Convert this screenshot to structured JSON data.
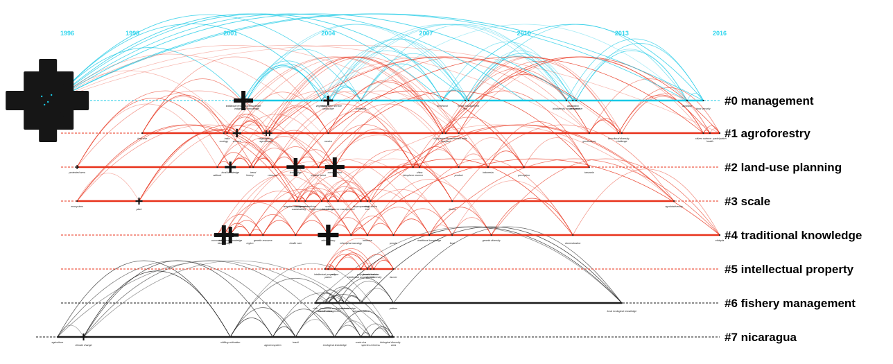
{
  "colors": {
    "top_cluster": "#19c9e6",
    "mid_clusters": "#e8311a",
    "low_clusters": "#1a1a1a",
    "years": "#2fd6ee"
  },
  "years": [
    "1996",
    "1998",
    "2001",
    "2004",
    "2007",
    "2010",
    "2013",
    "2016"
  ],
  "clusters": [
    {
      "label": "#0 management",
      "color": "cyan",
      "nodes": [
        {
          "label": "traditional ecological knowledge",
          "year": 2001.4
        },
        {
          "label": "indigenous knowledge",
          "year": 2001.5
        },
        {
          "label": "vegetation",
          "year": 2003.8
        },
        {
          "label": "landscape",
          "year": 2004.0
        },
        {
          "label": "ecosystem service",
          "year": 2004.1
        },
        {
          "label": "amazonia",
          "year": 2005.0
        },
        {
          "label": "livelihood",
          "year": 2007.5
        },
        {
          "label": "fire",
          "year": 2008.2
        },
        {
          "label": "forest management",
          "year": 2008.3
        },
        {
          "label": "biodiversity conservation",
          "year": 2011.3
        },
        {
          "label": "adaptation",
          "year": 2011.5
        },
        {
          "label": "perspective",
          "year": 2011.6
        },
        {
          "label": "australia",
          "year": 2015.0
        },
        {
          "label": "food security",
          "year": 2015.5
        }
      ]
    },
    {
      "label": "#1 agroforestry",
      "color": "red",
      "nodes": [
        {
          "label": "land use",
          "year": 1998.3
        },
        {
          "label": "ecology",
          "year": 2000.8
        },
        {
          "label": "india",
          "year": 2000.9
        },
        {
          "label": "science",
          "year": 2001.2
        },
        {
          "label": "organic",
          "year": 2002.0
        },
        {
          "label": "agroforestry",
          "year": 2002.1
        },
        {
          "label": "policy",
          "year": 2002.2
        },
        {
          "label": "mexico",
          "year": 2004.0
        },
        {
          "label": "silvopastoralism",
          "year": 2007.5
        },
        {
          "label": "vineyard",
          "year": 2007.6
        },
        {
          "label": "northeast india",
          "year": 2008.0
        },
        {
          "label": "governance",
          "year": 2012.0
        },
        {
          "label": "biocultural diversity",
          "year": 2012.9
        },
        {
          "label": "challenge",
          "year": 2013.0
        },
        {
          "label": "citizen science",
          "year": 2015.5
        },
        {
          "label": "health",
          "year": 2015.7
        },
        {
          "label": "participation",
          "year": 2016.0
        }
      ]
    },
    {
      "label": "#2 land-use planning",
      "color": "red",
      "nodes": [
        {
          "label": "protected area",
          "year": 1996.3
        },
        {
          "label": "attitude",
          "year": 2000.6
        },
        {
          "label": "local knowledge",
          "year": 2001.0
        },
        {
          "label": "history",
          "year": 2001.6
        },
        {
          "label": "trend",
          "year": 2001.7
        },
        {
          "label": "resource",
          "year": 2002.3
        },
        {
          "label": "knowledge",
          "year": 2003.0
        },
        {
          "label": "tropical forest",
          "year": 2003.7
        },
        {
          "label": "conservation",
          "year": 2004.2
        },
        {
          "label": "biosphere reserve",
          "year": 2006.6
        },
        {
          "label": "china",
          "year": 2006.8
        },
        {
          "label": "product",
          "year": 2008.0
        },
        {
          "label": "indonesia",
          "year": 2008.9
        },
        {
          "label": "perception",
          "year": 2010.0
        },
        {
          "label": "tanzania",
          "year": 2012.0
        }
      ]
    },
    {
      "label": "#3 scale",
      "color": "red",
      "nodes": [
        {
          "label": "ecosystem",
          "year": 1996.3
        },
        {
          "label": "plant",
          "year": 1998.2
        },
        {
          "label": "adaptive management",
          "year": 2003.0
        },
        {
          "label": "sustainability",
          "year": 2003.1
        },
        {
          "label": "traditional medicine",
          "year": 2003.3
        },
        {
          "label": "indigenous knowledge",
          "year": 2003.8
        },
        {
          "label": "scale",
          "year": 2004.0
        },
        {
          "label": "natural resource management",
          "year": 2004.3
        },
        {
          "label": "bioprospecting",
          "year": 2005.0
        },
        {
          "label": "tree",
          "year": 2005.2
        },
        {
          "label": "south africa",
          "year": 2005.3
        },
        {
          "label": "district",
          "year": 2007.8
        },
        {
          "label": "agrobiodiversity",
          "year": 2014.6
        }
      ]
    },
    {
      "label": "#4 traditional knowledge",
      "color": "red",
      "nodes": [
        {
          "label": "community",
          "year": 2000.6
        },
        {
          "label": "biodiversity",
          "year": 2000.8
        },
        {
          "label": "traditional knowledge",
          "year": 2001.0
        },
        {
          "label": "region",
          "year": 2001.6
        },
        {
          "label": "genetic resource",
          "year": 2002.0
        },
        {
          "label": "health care",
          "year": 2003.0
        },
        {
          "label": "ethnobotany",
          "year": 2004.0
        },
        {
          "label": "ethnopharmacology",
          "year": 2004.7
        },
        {
          "label": "landrace",
          "year": 2005.2
        },
        {
          "label": "people",
          "year": 2006.0
        },
        {
          "label": "traditional knowledge",
          "year": 2007.1
        },
        {
          "label": "food",
          "year": 2007.8
        },
        {
          "label": "genetic diversity",
          "year": 2009.0
        },
        {
          "label": "domestication",
          "year": 2011.5
        },
        {
          "label": "ethiopia",
          "year": 2016.0
        }
      ]
    },
    {
      "label": "#5 intellectual property",
      "color": "red",
      "nodes": [
        {
          "label": "intellectual property",
          "year": 2003.9
        },
        {
          "label": "patent",
          "year": 2004.0
        },
        {
          "label": "culture",
          "year": 2004.2
        },
        {
          "label": "intellectual property right",
          "year": 2005.0
        },
        {
          "label": "crop domestication",
          "year": 2005.2
        },
        {
          "label": "plant diversity",
          "year": 2005.4
        },
        {
          "label": "genetic erosion",
          "year": 2005.3
        },
        {
          "label": "farmer",
          "year": 2006.0
        }
      ]
    },
    {
      "label": "#6 fishery management",
      "color": "black",
      "nodes": [
        {
          "label": "chile",
          "year": 2003.6
        },
        {
          "label": "classification",
          "year": 2003.9
        },
        {
          "label": "traditional ecological knowledge",
          "year": 2004.3
        },
        {
          "label": "resource management",
          "year": 2004.0
        },
        {
          "label": "oceania",
          "year": 2004.5
        },
        {
          "label": "solomon island",
          "year": 2005.0
        },
        {
          "label": "pattern",
          "year": 2006.0
        },
        {
          "label": "local ecological knowledge",
          "year": 2013.0
        }
      ]
    },
    {
      "label": "#7 nicaragua",
      "color": "black",
      "nodes": [
        {
          "label": "agriculture",
          "year": 1995.7
        },
        {
          "label": "climate change",
          "year": 1996.5
        },
        {
          "label": "shifting cultivation",
          "year": 2001.0
        },
        {
          "label": "agroecosystem",
          "year": 2002.3
        },
        {
          "label": "brazil",
          "year": 2003.0
        },
        {
          "label": "ecological knowledge",
          "year": 2004.2
        },
        {
          "label": "costa rica",
          "year": 2005.0
        },
        {
          "label": "species richness",
          "year": 2005.3
        },
        {
          "label": "biological diversity",
          "year": 2005.9
        },
        {
          "label": "area",
          "year": 2006.0
        }
      ]
    }
  ]
}
